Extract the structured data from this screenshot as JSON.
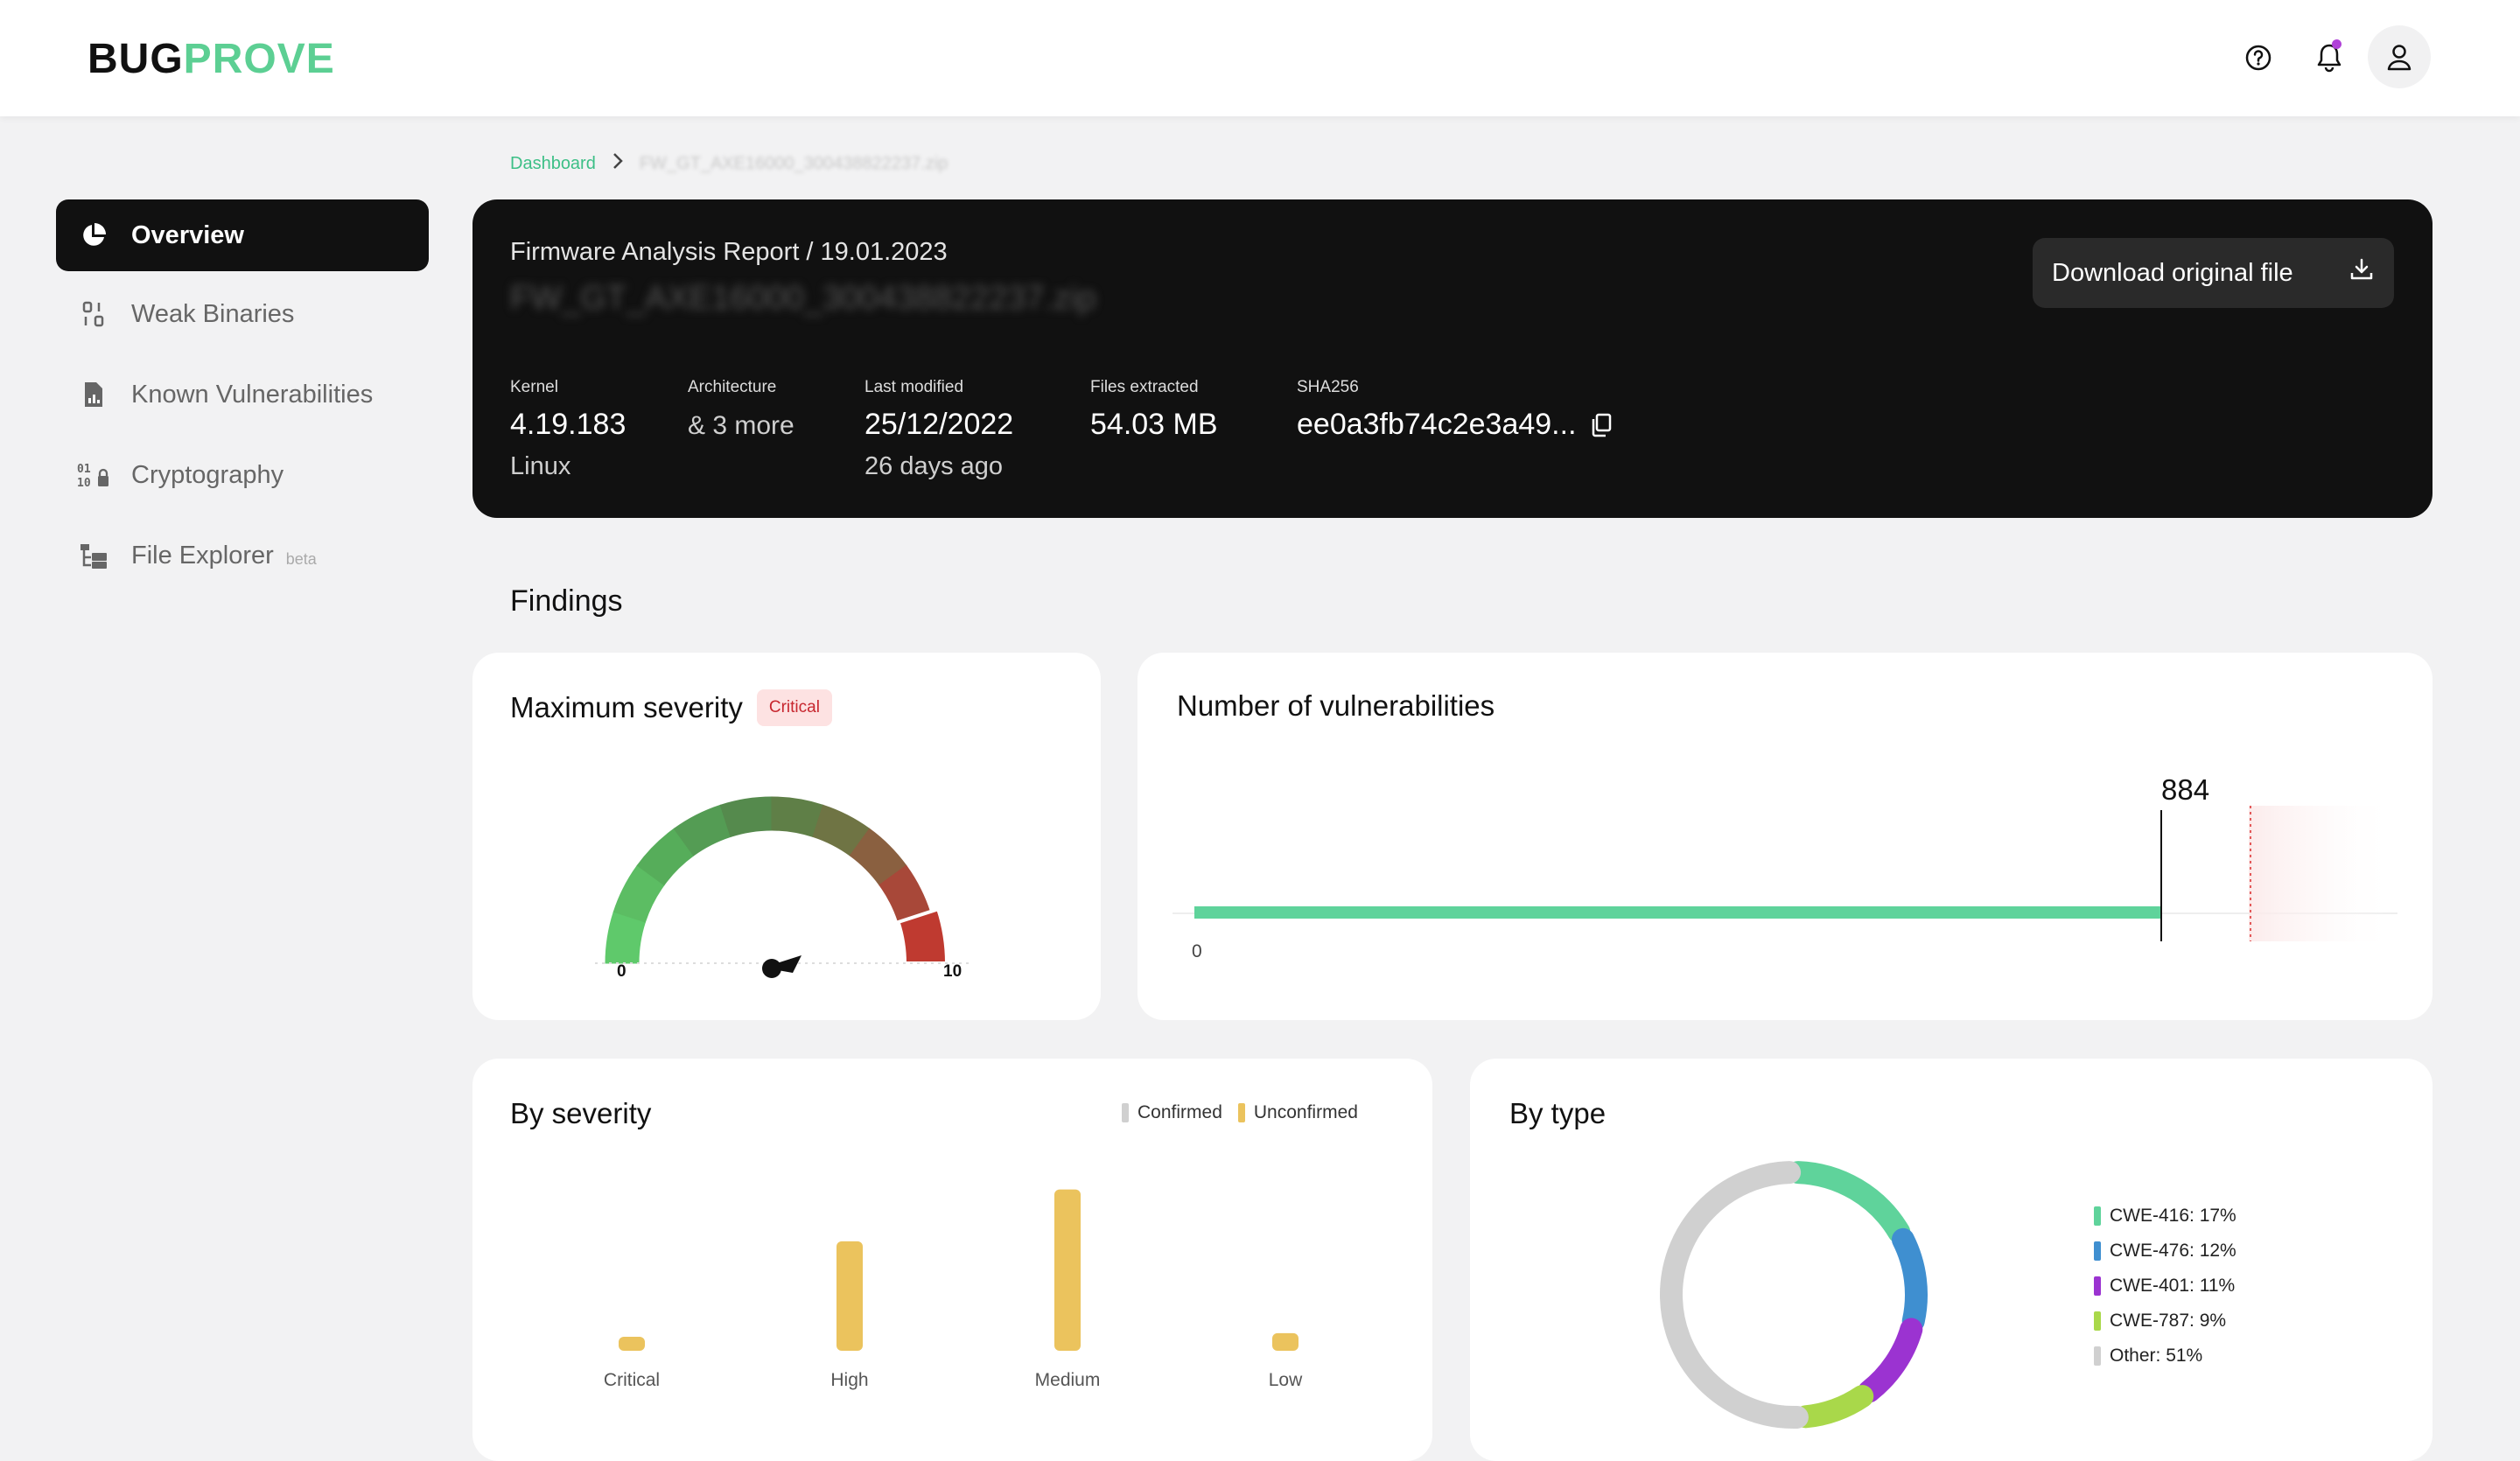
{
  "app": {
    "logo_part1": "BUG",
    "logo_part2": "PROVE",
    "brand_color": "#5ccf93"
  },
  "topbar": {
    "icons": [
      "help-icon",
      "bell-icon",
      "user-icon"
    ]
  },
  "sidebar": {
    "items": [
      {
        "label": "Overview",
        "icon": "pie-chart-icon",
        "active": true
      },
      {
        "label": "Weak Binaries",
        "icon": "binary-icon"
      },
      {
        "label": "Known Vulnerabilities",
        "icon": "document-chart-icon"
      },
      {
        "label": "Cryptography",
        "icon": "binary-lock-icon"
      },
      {
        "label": "File Explorer",
        "icon": "folder-tree-icon",
        "badge": "beta"
      }
    ]
  },
  "breadcrumb": {
    "root": "Dashboard",
    "current": "FW_GT_AXE16000_300438822237.zip"
  },
  "report": {
    "title": "Firmware Analysis Report / 19.01.2023",
    "filename": "FW_GT_AXE16000_300438822237.zip",
    "download_label": "Download original file",
    "meta": {
      "kernel_label": "Kernel",
      "kernel_value": "4.19.183",
      "kernel_sub": "Linux",
      "arch_label": "Architecture",
      "arch_value": "& 3 more",
      "modified_label": "Last modified",
      "modified_value": "25/12/2022",
      "modified_sub": "26 days ago",
      "files_label": "Files extracted",
      "files_value": "54.03 MB",
      "sha_label": "SHA256",
      "sha_value": "ee0a3fb74c2e3a49..."
    }
  },
  "findings": {
    "title": "Findings",
    "max_severity": {
      "title": "Maximum severity",
      "badge": "Critical",
      "min_label": "0",
      "max_label": "10"
    },
    "vuln_count": {
      "title": "Number of vulnerabilities",
      "value_label": "884",
      "zero_label": "0"
    },
    "by_severity": {
      "title": "By severity",
      "legend_confirmed": "Confirmed",
      "legend_unconfirmed": "Unconfirmed"
    },
    "by_type": {
      "title": "By type",
      "legend": [
        "CWE-416: 17%",
        "CWE-476: 12%",
        "CWE-401: 11%",
        "CWE-787: 9%",
        "Other: 51%"
      ]
    }
  },
  "chart_data": [
    {
      "type": "bar",
      "title": "By severity",
      "categories": [
        "Critical",
        "High",
        "Medium",
        "Low"
      ],
      "series": [
        {
          "name": "Confirmed",
          "values": [
            0,
            0,
            0,
            0
          ],
          "color": "#d0d0d0"
        },
        {
          "name": "Unconfirmed",
          "values": [
            12,
            112,
            165,
            18
          ],
          "color": "#ebc35d"
        }
      ]
    },
    {
      "type": "pie",
      "title": "By type",
      "labels": [
        "CWE-416",
        "CWE-476",
        "CWE-401",
        "CWE-787",
        "Other"
      ],
      "values": [
        17,
        12,
        11,
        9,
        51
      ],
      "colors": [
        "#5fd39b",
        "#3f8fd0",
        "#9b33d1",
        "#a9d84a",
        "#d0d0d0"
      ]
    },
    {
      "type": "bar",
      "title": "Number of vulnerabilities",
      "values": [
        884
      ],
      "xlim": [
        0,
        1100
      ],
      "color": "#5fd39b"
    }
  ]
}
